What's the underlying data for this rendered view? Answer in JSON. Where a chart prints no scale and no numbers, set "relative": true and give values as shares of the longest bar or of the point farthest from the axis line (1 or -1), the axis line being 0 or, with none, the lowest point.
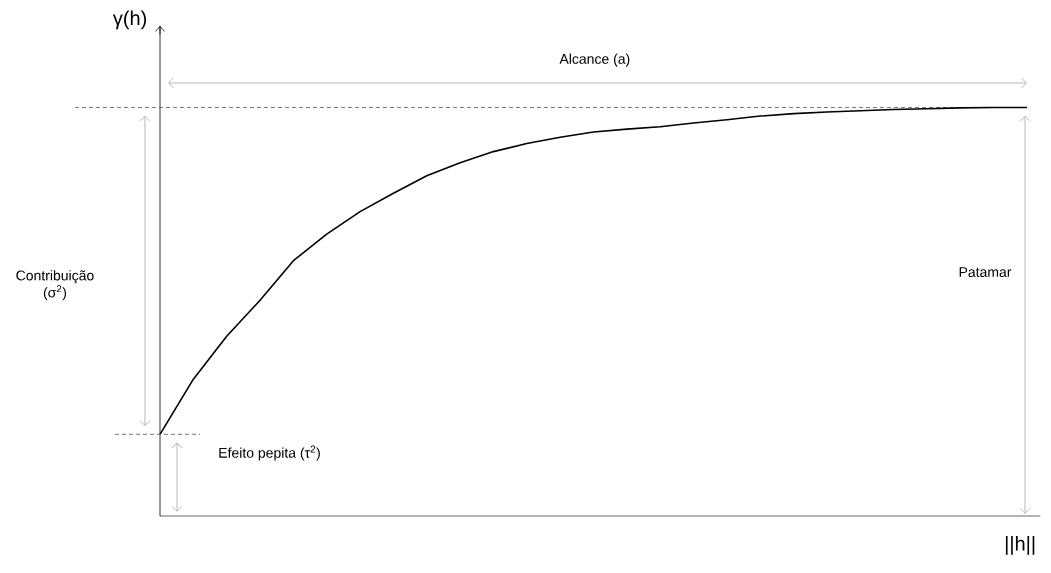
{
  "chart_data": {
    "type": "line",
    "relative": true,
    "categories": [
      null,
      null,
      null,
      null,
      null,
      null,
      null,
      null,
      null,
      null,
      null,
      null,
      null,
      null,
      null,
      null,
      null,
      null,
      null,
      null,
      null,
      null,
      null,
      null,
      null,
      null,
      null
    ],
    "values": [
      0.2,
      0.335,
      0.44,
      0.528,
      0.625,
      0.69,
      0.745,
      0.79,
      0.833,
      0.865,
      0.892,
      0.912,
      0.927,
      0.94,
      0.947,
      0.953,
      0.962,
      0.97,
      0.979,
      0.985,
      0.989,
      0.992,
      0.995,
      0.997,
      0.999,
      1.0,
      1.0
    ],
    "color": "#000000",
    "xlabel": "||h||",
    "ylabel": "γ(h)",
    "annotations": [
      "Alcance (a)",
      "Contribuição (σ$^{2}$)",
      "Patamar",
      "Efeito pepita (τ$^{2}$)"
    ],
    "ref_lines": [
      {
        "axis": "y",
        "value": 1,
        "color": "#555555",
        "line_style": "dashed"
      }
    ]
  }
}
